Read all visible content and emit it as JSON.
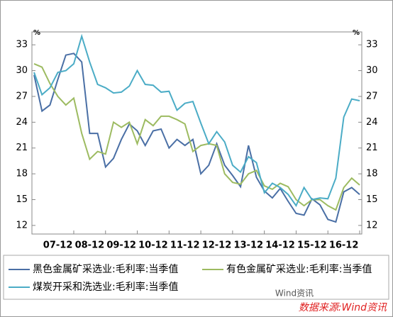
{
  "chart_data": {
    "type": "line",
    "y_unit": "%",
    "categories": [
      null,
      null,
      null,
      "07-12",
      null,
      null,
      null,
      "08-12",
      null,
      null,
      null,
      "09-12",
      null,
      null,
      null,
      "10-12",
      null,
      null,
      null,
      "11-12",
      null,
      null,
      null,
      "12-12",
      null,
      null,
      null,
      "13-12",
      null,
      null,
      null,
      "14-12",
      null,
      null,
      null,
      "15-12",
      null,
      null,
      null,
      "16-12",
      null,
      null
    ],
    "series": [
      {
        "name": "黑色金属矿采选业:毛利率:当季值",
        "color": "#4a6fa5",
        "values": [
          29.5,
          25.3,
          26,
          29,
          31.8,
          32,
          31,
          22.7,
          22.7,
          18.8,
          19.8,
          22,
          23.8,
          23,
          21.3,
          23,
          23.2,
          21,
          22,
          21.3,
          22,
          18,
          19,
          21.5,
          19,
          17.8,
          16.5,
          21.3,
          17.6,
          16,
          15.2,
          16.3,
          14.8,
          13.4,
          13.2,
          15.1,
          14.4,
          12.7,
          12.4,
          15.9,
          16.4,
          15.6
        ]
      },
      {
        "name": "有色金属矿采选业:毛利率:当季值",
        "color": "#9dbb61",
        "values": [
          30.8,
          30.4,
          28.5,
          27,
          26,
          26.8,
          22.7,
          19.7,
          20.6,
          20.3,
          24,
          23.4,
          24,
          21.5,
          24.3,
          23.6,
          24.7,
          24.7,
          24.3,
          23.8,
          20.6,
          21.3,
          21.5,
          21.3,
          18,
          17,
          16.8,
          18,
          18.4,
          16.6,
          16.2,
          16.9,
          16.5,
          15,
          14.3,
          15,
          15,
          14.3,
          13.8,
          16.4,
          17.5,
          16.7
        ]
      },
      {
        "name": "煤炭开采和洗选业:毛利率:当季值",
        "color": "#4bacc6",
        "values": [
          29.8,
          27.2,
          28,
          29.8,
          30,
          30.8,
          34,
          31,
          28.4,
          28,
          27.4,
          27.5,
          28.2,
          30,
          28.4,
          28.3,
          27.5,
          27.6,
          25.4,
          26.2,
          26.4,
          23.9,
          21.5,
          22.9,
          21.7,
          19,
          18.2,
          20,
          19.3,
          15.8,
          16.9,
          16.4,
          15.6,
          14.3,
          16.4,
          15,
          15.2,
          15.1,
          17.5,
          24.6,
          26.7,
          26.5
        ]
      }
    ],
    "ylim": [
      11,
      34.5
    ],
    "yticks": [
      12,
      15,
      18,
      21,
      24,
      27,
      30,
      33
    ],
    "y2lim": [
      11,
      34.5
    ],
    "y2ticks": [
      12,
      15,
      18,
      21,
      24,
      27,
      30,
      33
    ],
    "source": "数据来源:Wind资讯",
    "watermark": "Wind资讯"
  }
}
